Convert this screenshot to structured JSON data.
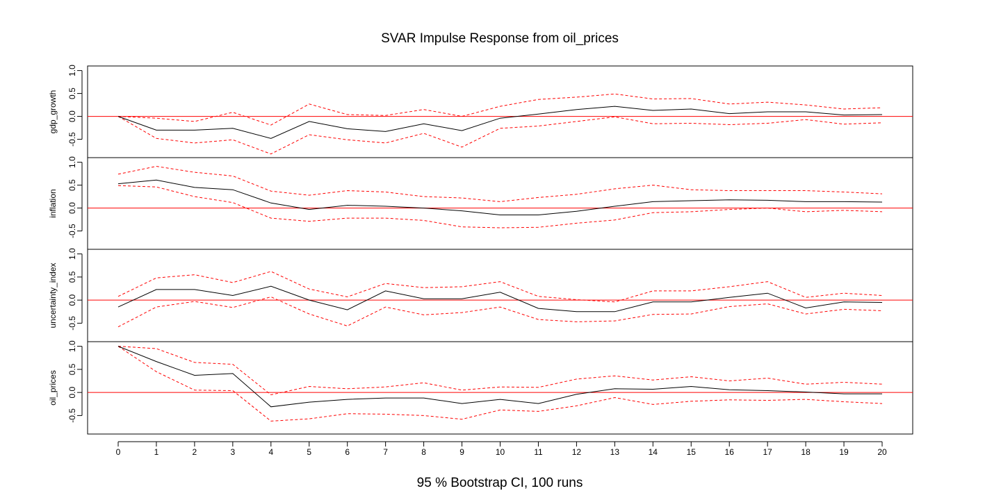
{
  "chart_data": {
    "type": "line",
    "title": "SVAR Impulse Response from oil_prices",
    "footer": "95 % Bootstrap CI,  100 runs",
    "x": [
      0,
      1,
      2,
      3,
      4,
      5,
      6,
      7,
      8,
      9,
      10,
      11,
      12,
      13,
      14,
      15,
      16,
      17,
      18,
      19,
      20
    ],
    "xlim": [
      0,
      20
    ],
    "y_ticks": [
      "-0.5",
      "0.0",
      "0.5",
      "1.0"
    ],
    "x_ticks": [
      "0",
      "1",
      "2",
      "3",
      "4",
      "5",
      "6",
      "7",
      "8",
      "9",
      "10",
      "11",
      "12",
      "13",
      "14",
      "15",
      "16",
      "17",
      "18",
      "19",
      "20"
    ],
    "colors": {
      "response": "#000000",
      "ci": "#ff0000",
      "zero": "#ff0000"
    },
    "panels": [
      {
        "name": "gdp_growth",
        "ylim": [
          -0.9,
          1.1
        ],
        "response": [
          0.0,
          -0.3,
          -0.3,
          -0.26,
          -0.48,
          -0.11,
          -0.27,
          -0.33,
          -0.16,
          -0.31,
          -0.04,
          0.05,
          0.15,
          0.22,
          0.13,
          0.16,
          0.06,
          0.1,
          0.1,
          0.03,
          0.04
        ],
        "lower": [
          0.0,
          -0.48,
          -0.58,
          -0.51,
          -0.82,
          -0.4,
          -0.51,
          -0.58,
          -0.37,
          -0.67,
          -0.26,
          -0.21,
          -0.11,
          -0.01,
          -0.16,
          -0.15,
          -0.18,
          -0.15,
          -0.07,
          -0.17,
          -0.14
        ],
        "upper": [
          0.0,
          -0.04,
          -0.11,
          0.09,
          -0.19,
          0.27,
          0.04,
          0.02,
          0.15,
          0.0,
          0.22,
          0.37,
          0.42,
          0.49,
          0.38,
          0.39,
          0.27,
          0.31,
          0.25,
          0.16,
          0.19
        ]
      },
      {
        "name": "inflation",
        "ylim": [
          -0.9,
          1.1
        ],
        "response": [
          0.53,
          0.61,
          0.45,
          0.4,
          0.11,
          -0.03,
          0.06,
          0.04,
          0.0,
          -0.06,
          -0.15,
          -0.15,
          -0.07,
          0.04,
          0.14,
          0.16,
          0.18,
          0.17,
          0.14,
          0.14,
          0.13
        ],
        "lower": [
          0.49,
          0.46,
          0.25,
          0.12,
          -0.22,
          -0.29,
          -0.22,
          -0.22,
          -0.27,
          -0.41,
          -0.43,
          -0.42,
          -0.33,
          -0.26,
          -0.1,
          -0.08,
          -0.03,
          0.0,
          -0.08,
          -0.05,
          -0.08
        ],
        "upper": [
          0.74,
          0.91,
          0.78,
          0.7,
          0.37,
          0.28,
          0.38,
          0.35,
          0.25,
          0.22,
          0.14,
          0.23,
          0.3,
          0.42,
          0.5,
          0.4,
          0.38,
          0.38,
          0.38,
          0.35,
          0.31
        ]
      },
      {
        "name": "uncertainty_index",
        "ylim": [
          -0.9,
          1.1
        ],
        "response": [
          -0.15,
          0.23,
          0.23,
          0.1,
          0.3,
          0.0,
          -0.21,
          0.2,
          0.03,
          0.03,
          0.17,
          -0.18,
          -0.25,
          -0.25,
          -0.04,
          -0.04,
          0.06,
          0.15,
          -0.17,
          -0.04,
          -0.05
        ],
        "lower": [
          -0.58,
          -0.15,
          -0.03,
          -0.16,
          0.07,
          -0.3,
          -0.56,
          -0.15,
          -0.32,
          -0.27,
          -0.15,
          -0.42,
          -0.47,
          -0.45,
          -0.31,
          -0.3,
          -0.14,
          -0.08,
          -0.3,
          -0.2,
          -0.23
        ],
        "upper": [
          0.08,
          0.48,
          0.55,
          0.38,
          0.62,
          0.24,
          0.07,
          0.36,
          0.27,
          0.29,
          0.4,
          0.08,
          0.01,
          -0.04,
          0.2,
          0.2,
          0.29,
          0.4,
          0.06,
          0.15,
          0.1
        ]
      },
      {
        "name": "oil_prices",
        "ylim": [
          -0.9,
          1.1
        ],
        "response": [
          1.0,
          0.67,
          0.37,
          0.41,
          -0.31,
          -0.21,
          -0.15,
          -0.12,
          -0.12,
          -0.24,
          -0.15,
          -0.24,
          -0.04,
          0.08,
          0.07,
          0.13,
          0.06,
          0.04,
          0.01,
          -0.03,
          -0.03
        ],
        "lower": [
          1.0,
          0.45,
          0.05,
          0.04,
          -0.62,
          -0.57,
          -0.46,
          -0.47,
          -0.5,
          -0.58,
          -0.38,
          -0.41,
          -0.29,
          -0.11,
          -0.26,
          -0.19,
          -0.16,
          -0.17,
          -0.15,
          -0.2,
          -0.24
        ],
        "upper": [
          1.0,
          0.95,
          0.65,
          0.61,
          -0.05,
          0.13,
          0.08,
          0.12,
          0.21,
          0.05,
          0.12,
          0.11,
          0.29,
          0.36,
          0.27,
          0.34,
          0.25,
          0.31,
          0.18,
          0.22,
          0.18
        ]
      }
    ]
  }
}
